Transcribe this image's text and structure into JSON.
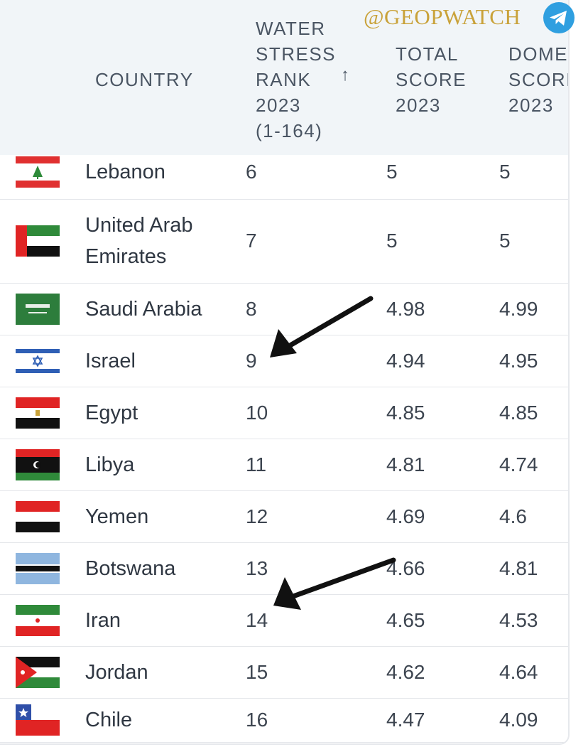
{
  "watermark": "@GEOPWATCH",
  "columns": {
    "country": "COUNTRY",
    "rank": "WATER\nSTRESS\nRANK\n2023\n(1-164)",
    "rank_sort": "↑",
    "total": "TOTAL\nSCORE\n2023",
    "domestic": "DOME\nSCORI\n2023"
  },
  "rows": [
    {
      "country": "Lebanon",
      "rank": "6",
      "total": "5",
      "domestic": "5",
      "flag": "lebanon"
    },
    {
      "country": "United Arab\nEmirates",
      "rank": "7",
      "total": "5",
      "domestic": "5",
      "flag": "uae"
    },
    {
      "country": "Saudi Arabia",
      "rank": "8",
      "total": "4.98",
      "domestic": "4.99",
      "flag": "saudi"
    },
    {
      "country": "Israel",
      "rank": "9",
      "total": "4.94",
      "domestic": "4.95",
      "flag": "israel"
    },
    {
      "country": "Egypt",
      "rank": "10",
      "total": "4.85",
      "domestic": "4.85",
      "flag": "egypt"
    },
    {
      "country": "Libya",
      "rank": "11",
      "total": "4.81",
      "domestic": "4.74",
      "flag": "libya"
    },
    {
      "country": "Yemen",
      "rank": "12",
      "total": "4.69",
      "domestic": "4.6",
      "flag": "yemen"
    },
    {
      "country": "Botswana",
      "rank": "13",
      "total": "4.66",
      "domestic": "4.81",
      "flag": "botswana"
    },
    {
      "country": "Iran",
      "rank": "14",
      "total": "4.65",
      "domestic": "4.53",
      "flag": "iran"
    },
    {
      "country": "Jordan",
      "rank": "15",
      "total": "4.62",
      "domestic": "4.64",
      "flag": "jordan"
    },
    {
      "country": "Chile",
      "rank": "16",
      "total": "4.47",
      "domestic": "4.09",
      "flag": "chile"
    }
  ],
  "annotations": {
    "arrow_icon": "black-arrow-icon",
    "arrow_color": "#111111"
  },
  "colors": {
    "header_bg": "#f1f5f8",
    "watermark": "#c9a23a",
    "telegram": "#2f9fe0"
  }
}
